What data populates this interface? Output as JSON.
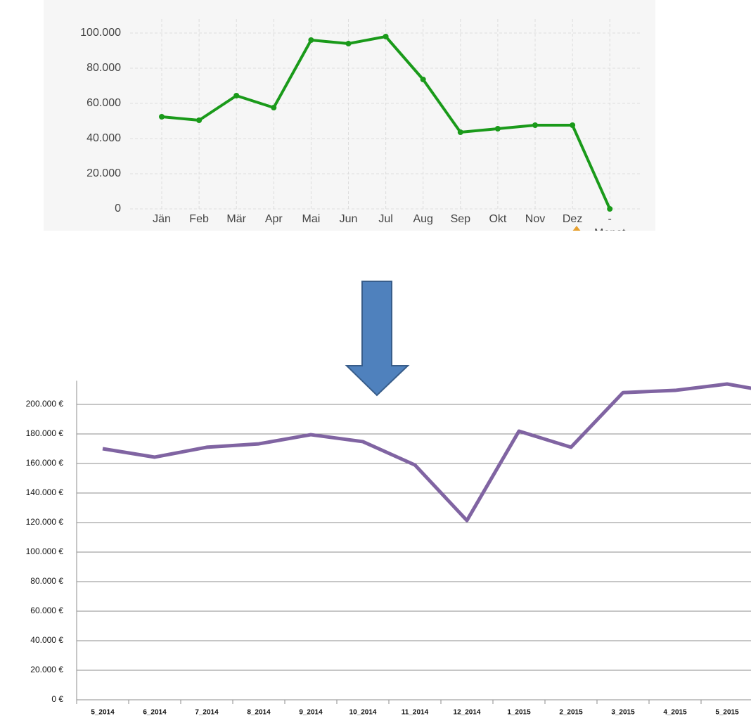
{
  "chart_data": [
    {
      "type": "line",
      "x_label": "Monat",
      "categories": [
        "Jän",
        "Feb",
        "Mär",
        "Apr",
        "Mai",
        "Jun",
        "Jul",
        "Aug",
        "Sep",
        "Okt",
        "Nov",
        "Dez",
        "-"
      ],
      "values": [
        52400,
        50400,
        64400,
        57600,
        96000,
        94000,
        98000,
        73600,
        43600,
        45600,
        47600,
        47600,
        0
      ],
      "color": "#1a9a1a",
      "markers": true,
      "ylim": [
        0,
        108000
      ],
      "yticks": [
        0,
        {
          "value": 20000,
          "label": "20.000"
        },
        {
          "value": 40000,
          "label": "40.000"
        },
        {
          "value": 60000,
          "label": "60.000"
        },
        {
          "value": 80000,
          "label": "80.000"
        },
        {
          "value": 100000,
          "label": "100.000"
        }
      ],
      "grid": true
    },
    {
      "type": "line",
      "categories": [
        "5_2014",
        "6_2014",
        "7_2014",
        "8_2014",
        "9_2014",
        "10_2014",
        "11_2014",
        "12_2014",
        "1_2015",
        "2_2015",
        "3_2015",
        "4_2015",
        "5_2015",
        null
      ],
      "values": [
        170000,
        164300,
        171000,
        173300,
        179500,
        174800,
        159000,
        121400,
        181900,
        171000,
        208000,
        209500,
        213800,
        207600
      ],
      "color": "#8064a2",
      "markers": false,
      "ylim": [
        0,
        216000
      ],
      "yticks": [
        {
          "value": 0,
          "label": "0 €"
        },
        {
          "value": 20000,
          "label": "20.000 €"
        },
        {
          "value": 40000,
          "label": "40.000 €"
        },
        {
          "value": 60000,
          "label": "60.000 €"
        },
        {
          "value": 80000,
          "label": "80.000 €"
        },
        {
          "value": 100000,
          "label": "100.000 €"
        },
        {
          "value": 120000,
          "label": "120.000 €"
        },
        {
          "value": 140000,
          "label": "140.000 €"
        },
        {
          "value": 160000,
          "label": "160.000 €"
        },
        {
          "value": 180000,
          "label": "180.000 €"
        },
        {
          "value": 200000,
          "label": "200.000 €"
        }
      ],
      "grid": true
    }
  ]
}
